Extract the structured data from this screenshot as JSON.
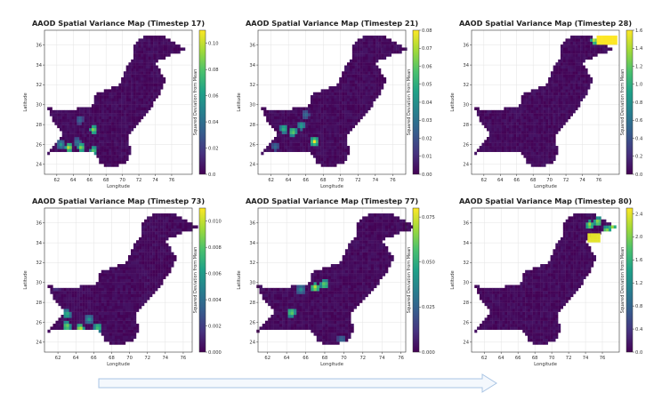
{
  "chart_data": [
    {
      "type": "heatmap",
      "title": "AAOD Spatial Variance Map (Timestep 17)",
      "xlabel": "Longitude",
      "ylabel": "Latitude",
      "colorbar_label": "Squared Deviation from Mean",
      "xlim": [
        60.5,
        78.5
      ],
      "ylim": [
        23,
        37.5
      ],
      "xticks": [
        62,
        64,
        66,
        68,
        70,
        72,
        74,
        76
      ],
      "yticks": [
        24,
        26,
        28,
        30,
        32,
        34,
        36
      ],
      "clim": [
        0,
        0.11
      ],
      "cbar_ticks": [
        0.0,
        0.02,
        0.04,
        0.06,
        0.08,
        0.1
      ],
      "cbar_tick_labels": [
        "0.0",
        "0.02",
        "0.04",
        "0.06",
        "0.08",
        "0.10"
      ],
      "grid": true,
      "colormap": "viridis",
      "hotspots": [
        {
          "lon": 63.5,
          "lat": 25.7,
          "value": 0.11
        },
        {
          "lon": 65.0,
          "lat": 25.7,
          "value": 0.1
        },
        {
          "lon": 66.5,
          "lat": 25.4,
          "value": 0.09
        },
        {
          "lon": 62.5,
          "lat": 26.0,
          "value": 0.06
        },
        {
          "lon": 64.5,
          "lat": 26.2,
          "value": 0.05
        },
        {
          "lon": 66.5,
          "lat": 27.5,
          "value": 0.1
        },
        {
          "lon": 64.8,
          "lat": 28.5,
          "value": 0.04
        }
      ]
    },
    {
      "type": "heatmap",
      "title": "AAOD Spatial Variance Map (Timestep 21)",
      "xlabel": "Longitude",
      "ylabel": "Latitude",
      "colorbar_label": "Squared Deviation from Mean",
      "xlim": [
        60.5,
        77.5
      ],
      "ylim": [
        23,
        37.5
      ],
      "xticks": [
        62,
        64,
        66,
        68,
        70,
        72,
        74,
        76
      ],
      "yticks": [
        24,
        26,
        28,
        30,
        32,
        34,
        36
      ],
      "clim": [
        0,
        0.08
      ],
      "cbar_ticks": [
        0.0,
        0.01,
        0.02,
        0.03,
        0.04,
        0.05,
        0.06,
        0.07,
        0.08
      ],
      "cbar_tick_labels": [
        "0.00",
        "0.01",
        "0.02",
        "0.03",
        "0.04",
        "0.05",
        "0.06",
        "0.07",
        "0.08"
      ],
      "grid": true,
      "colormap": "viridis",
      "hotspots": [
        {
          "lon": 63.5,
          "lat": 27.6,
          "value": 0.06
        },
        {
          "lon": 64.5,
          "lat": 27.3,
          "value": 0.07
        },
        {
          "lon": 65.5,
          "lat": 27.9,
          "value": 0.05
        },
        {
          "lon": 62.5,
          "lat": 25.8,
          "value": 0.03
        },
        {
          "lon": 67.0,
          "lat": 26.3,
          "value": 0.08
        },
        {
          "lon": 66.0,
          "lat": 29.0,
          "value": 0.03
        }
      ]
    },
    {
      "type": "heatmap",
      "title": "AAOD Spatial Variance Map (Timestep 28)",
      "xlabel": "Longitude",
      "ylabel": "Latitude",
      "colorbar_label": "Squared Deviation from Mean",
      "xlim": [
        60.5,
        78.5
      ],
      "ylim": [
        23,
        37.5
      ],
      "xticks": [
        62,
        64,
        66,
        68,
        70,
        72,
        74,
        76
      ],
      "yticks": [
        24,
        26,
        28,
        30,
        32,
        34,
        36
      ],
      "clim": [
        0,
        1.6
      ],
      "cbar_ticks": [
        0.0,
        0.2,
        0.4,
        0.6,
        0.8,
        1.0,
        1.2,
        1.4,
        1.6
      ],
      "cbar_tick_labels": [
        "0.0",
        "0.2",
        "0.4",
        "0.6",
        "0.8",
        "1.0",
        "1.2",
        "1.4",
        "1.6"
      ],
      "grid": true,
      "colormap": "viridis",
      "hotspots": [
        {
          "lon": 75.5,
          "lat": 36.5,
          "value": 1.6
        },
        {
          "lon": 76.5,
          "lat": 36.5,
          "value": 1.6
        },
        {
          "lon": 77.5,
          "lat": 36.5,
          "value": 1.6
        }
      ]
    },
    {
      "type": "heatmap",
      "title": "AAOD Spatial Variance Map (Timestep 73)",
      "xlabel": "Longitude",
      "ylabel": "Latitude",
      "colorbar_label": "Squared Deviation from Mean",
      "xlim": [
        60.5,
        77.0
      ],
      "ylim": [
        23,
        37.5
      ],
      "xticks": [
        62,
        64,
        66,
        68,
        70,
        72,
        74,
        76
      ],
      "yticks": [
        24,
        26,
        28,
        30,
        32,
        34,
        36
      ],
      "clim": [
        0,
        0.011
      ],
      "cbar_ticks": [
        0.0,
        0.002,
        0.004,
        0.006,
        0.008,
        0.01
      ],
      "cbar_tick_labels": [
        "0.000",
        "0.002",
        "0.004",
        "0.006",
        "0.008",
        "0.010"
      ],
      "grid": true,
      "colormap": "viridis",
      "hotspots": [
        {
          "lon": 63.0,
          "lat": 25.6,
          "value": 0.01
        },
        {
          "lon": 64.5,
          "lat": 25.4,
          "value": 0.011
        },
        {
          "lon": 66.5,
          "lat": 25.5,
          "value": 0.009
        },
        {
          "lon": 63.0,
          "lat": 26.8,
          "value": 0.008
        },
        {
          "lon": 65.5,
          "lat": 26.3,
          "value": 0.006
        },
        {
          "lon": 61.8,
          "lat": 29.5,
          "value": 0.002
        }
      ]
    },
    {
      "type": "heatmap",
      "title": "AAOD Spatial Variance Map (Timestep 77)",
      "xlabel": "Longitude",
      "ylabel": "Latitude",
      "colorbar_label": "Squared Deviation from Mean",
      "xlim": [
        61.0,
        76.5
      ],
      "ylim": [
        23,
        37.5
      ],
      "xticks": [
        62,
        64,
        66,
        68,
        70,
        72,
        74,
        76
      ],
      "yticks": [
        24,
        26,
        28,
        30,
        32,
        34,
        36
      ],
      "clim": [
        0,
        0.08
      ],
      "cbar_ticks": [
        0.0,
        0.025,
        0.05,
        0.075
      ],
      "cbar_tick_labels": [
        "0.000",
        "0.025",
        "0.050",
        "0.075"
      ],
      "grid": true,
      "colormap": "viridis",
      "hotspots": [
        {
          "lon": 67.0,
          "lat": 29.5,
          "value": 0.08
        },
        {
          "lon": 68.0,
          "lat": 29.8,
          "value": 0.07
        },
        {
          "lon": 65.5,
          "lat": 29.3,
          "value": 0.04
        },
        {
          "lon": 64.5,
          "lat": 27.0,
          "value": 0.07
        },
        {
          "lon": 69.8,
          "lat": 24.3,
          "value": 0.03
        }
      ]
    },
    {
      "type": "heatmap",
      "title": "AAOD Spatial Variance Map (Timestep 80)",
      "xlabel": "Longitude",
      "ylabel": "Latitude",
      "colorbar_label": "Squared Deviation from Mean",
      "xlim": [
        60.5,
        78.0
      ],
      "ylim": [
        23,
        37.5
      ],
      "xticks": [
        62,
        64,
        66,
        68,
        70,
        72,
        74,
        76
      ],
      "yticks": [
        24,
        26,
        28,
        30,
        32,
        34,
        36
      ],
      "clim": [
        0,
        2.5
      ],
      "cbar_ticks": [
        0.0,
        0.4,
        0.8,
        1.2,
        1.6,
        2.0,
        2.4
      ],
      "cbar_tick_labels": [
        "0.0",
        "0.4",
        "0.8",
        "1.2",
        "1.6",
        "2.0",
        "2.4"
      ],
      "grid": true,
      "colormap": "viridis",
      "hotspots": [
        {
          "lon": 74.5,
          "lat": 35.8,
          "value": 2.4
        },
        {
          "lon": 75.5,
          "lat": 36.1,
          "value": 2.4
        },
        {
          "lon": 76.5,
          "lat": 35.2,
          "value": 2.4
        },
        {
          "lon": 77.2,
          "lat": 35.5,
          "value": 2.4
        },
        {
          "lon": 75.0,
          "lat": 34.5,
          "value": 2.4
        }
      ]
    }
  ],
  "colors": {
    "colormap_stops": [
      "#440154",
      "#46327e",
      "#365c8d",
      "#277f8e",
      "#1fa187",
      "#4ac16d",
      "#a0da39",
      "#fde725"
    ],
    "arrow": "#a9c4e4",
    "grid": "#e3e3e3"
  }
}
